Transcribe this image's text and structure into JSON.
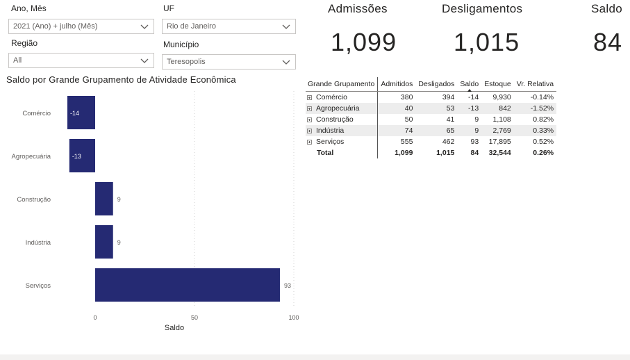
{
  "slicers": {
    "ano_mes": {
      "title": "Ano, Mês",
      "value": "2021 (Ano) + julho (Mês)"
    },
    "uf": {
      "title": "UF",
      "value": "Rio de Janeiro"
    },
    "regiao": {
      "title": "Região",
      "value": "All"
    },
    "municipio": {
      "title": "Município",
      "value": "Teresopolis"
    },
    "chevron_icon": "chevron-down-icon"
  },
  "kpis": {
    "admissoes": {
      "label": "Admissões",
      "value": "1,099"
    },
    "desligamentos": {
      "label": "Desligamentos",
      "value": "1,015"
    },
    "saldo": {
      "label": "Saldo",
      "value": "84"
    }
  },
  "chart_data": {
    "type": "bar",
    "orientation": "horizontal",
    "title": "Saldo por Grande Grupamento de Atividade Econômica",
    "categories": [
      "Comércio",
      "Agropecuária",
      "Construção",
      "Indústria",
      "Serviços"
    ],
    "values": [
      -14,
      -13,
      9,
      9,
      93
    ],
    "xlabel": "Saldo",
    "ylabel": "",
    "xlim": [
      -14,
      100
    ],
    "xticks": [
      0,
      50,
      100
    ],
    "bar_color": "#252a73",
    "grid": true
  },
  "matrix": {
    "headers": [
      "Grande Grupamento",
      "Admitidos",
      "Desligados",
      "Saldo",
      "Estoque",
      "Vr. Relativa"
    ],
    "rows": [
      [
        "Comércio",
        "380",
        "394",
        "-14",
        "9,930",
        "-0.14%"
      ],
      [
        "Agropecuária",
        "40",
        "53",
        "-13",
        "842",
        "-1.52%"
      ],
      [
        "Construção",
        "50",
        "41",
        "9",
        "1,108",
        "0.82%"
      ],
      [
        "Indústria",
        "74",
        "65",
        "9",
        "2,769",
        "0.33%"
      ],
      [
        "Serviços",
        "555",
        "462",
        "93",
        "17,895",
        "0.52%"
      ]
    ],
    "total": [
      "Total",
      "1,099",
      "1,015",
      "84",
      "32,544",
      "0.26%"
    ]
  }
}
